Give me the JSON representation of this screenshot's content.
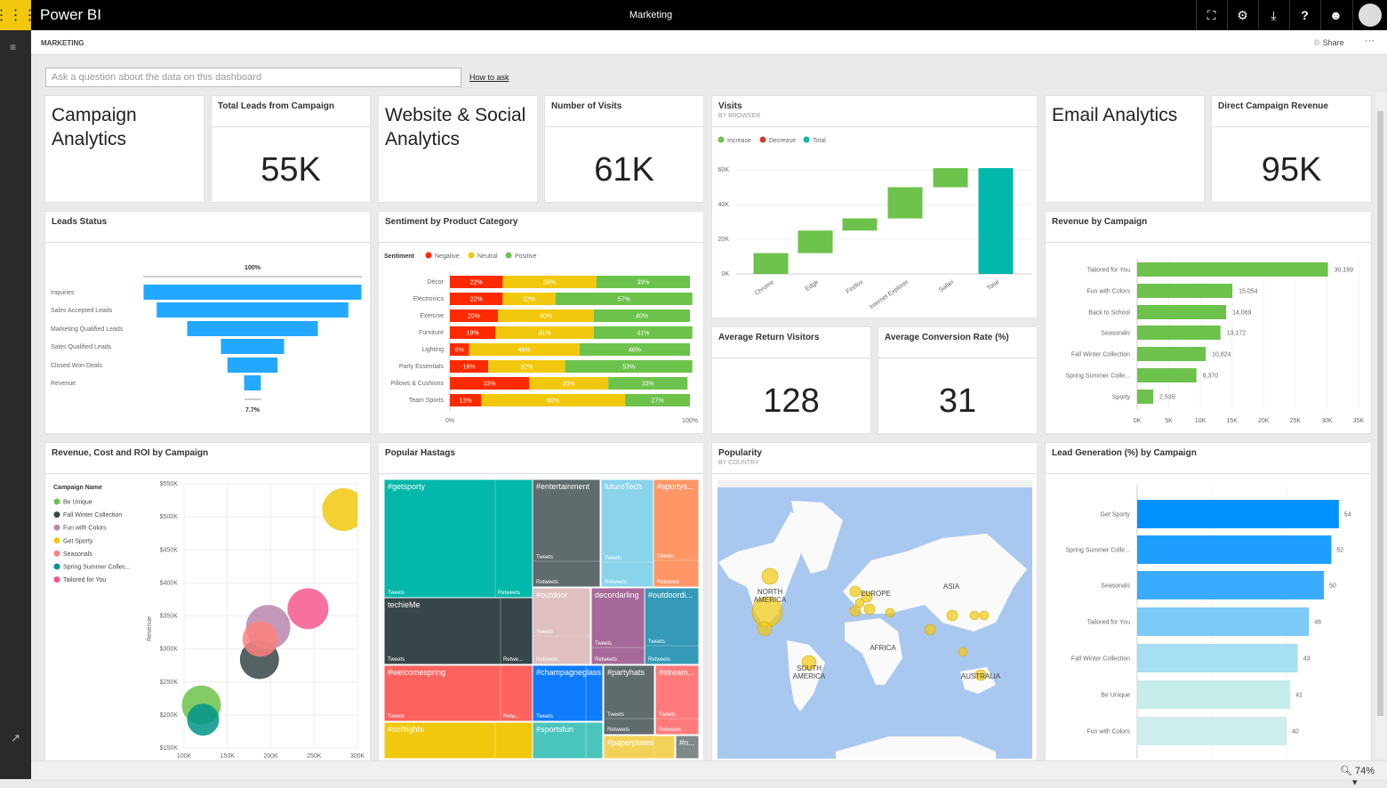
{
  "app": {
    "brand": "Power BI",
    "title": "Marketing",
    "section": "MARKETING",
    "share": "Share",
    "more": "···",
    "zoom": "74%"
  },
  "header_icons": [
    "fullscreen-icon",
    "gear-icon",
    "download-icon",
    "help-icon",
    "smiley-icon",
    "avatar-icon"
  ],
  "qa": {
    "placeholder": "Ask a question about the data on this dashboard",
    "how_to": "How to ask"
  },
  "tiles": {
    "campaign_analytics": "Campaign Analytics",
    "total_leads": {
      "title": "Total Leads from Campaign",
      "value": "55K"
    },
    "website_social": "Website & Social Analytics",
    "visits_number": {
      "title": "Number of Visits",
      "value": "61K"
    },
    "visits": {
      "title": "Visits",
      "subtitle": "BY BROWSER"
    },
    "email_analytics": "Email Analytics",
    "direct_revenue": {
      "title": "Direct Campaign Revenue",
      "value": "95K"
    },
    "leads_status": {
      "title": "Leads Status"
    },
    "sentiment": {
      "title": "Sentiment by Product Category"
    },
    "avg_return": {
      "title": "Average Return Visitors",
      "value": "128"
    },
    "avg_conversion": {
      "title": "Average Conversion Rate (%)",
      "value": "31"
    },
    "revenue_campaign": {
      "title": "Revenue by Campaign"
    },
    "rcr": {
      "title": "Revenue, Cost and ROI by Campaign"
    },
    "hashtags": {
      "title": "Popular Hastags"
    },
    "popularity": {
      "title": "Popularity",
      "subtitle": "BY COUNTRY"
    },
    "lead_gen": {
      "title": "Lead Generation (%) by Campaign"
    }
  },
  "chart_data": [
    {
      "id": "funnel",
      "type": "funnel",
      "categories": [
        "Inquiries",
        "Sales Accepted Leads",
        "Marketing Qualified Leads",
        "Sales Qualified Leads",
        "Closed Won Deals",
        "Revenue"
      ],
      "values": [
        100,
        88,
        60,
        29,
        23,
        7.7
      ],
      "top_label": "100%",
      "bottom_label": "7.7%",
      "color": "#23a8ff"
    },
    {
      "id": "sentiment",
      "type": "bar",
      "stacked": "100%",
      "legend_title": "Sentiment",
      "categories": [
        "Décor",
        "Electronics",
        "Exercise",
        "Furniture",
        "Lighting",
        "Party Essentials",
        "Pillows & Cushions",
        "Team Sports"
      ],
      "series": [
        {
          "name": "Negative",
          "color": "#fd2a00",
          "values": [
            22,
            22,
            20,
            19,
            8,
            16,
            33,
            13
          ]
        },
        {
          "name": "Neutral",
          "color": "#f2c80f",
          "values": [
            39,
            22,
            40,
            41,
            46,
            32,
            33,
            60
          ]
        },
        {
          "name": "Positive",
          "color": "#6cc24a",
          "values": [
            39,
            57,
            40,
            41,
            46,
            53,
            33,
            27
          ]
        }
      ],
      "xticks": [
        "0%",
        "100%"
      ]
    },
    {
      "id": "visits",
      "type": "waterfall",
      "legend": [
        {
          "name": "Increase",
          "color": "#6cc24a"
        },
        {
          "name": "Decrease",
          "color": "#d13b2f"
        },
        {
          "name": "Total",
          "color": "#01b8aa"
        }
      ],
      "categories": [
        "Chrome",
        "Edge",
        "Firefox",
        "Internet Explorer",
        "Safari",
        "Total"
      ],
      "values": [
        12000,
        13000,
        7000,
        18000,
        11000,
        61000
      ],
      "ylim": [
        0,
        60000
      ],
      "yticks": [
        "0K",
        "20K",
        "40K",
        "60K"
      ]
    },
    {
      "id": "revenue_by_campaign",
      "type": "bar",
      "orientation": "horizontal",
      "categories": [
        "Tailored for You",
        "Fun with Colors",
        "Back to School",
        "Seasonals",
        "Fall Winter Collection",
        "Spring Summer Colle...",
        "Sporty"
      ],
      "values": [
        30169,
        15054,
        14069,
        13172,
        10824,
        9370,
        2535
      ],
      "labels": [
        "30,169",
        "15,054",
        "14,069",
        "13,172",
        "10,824",
        "9,370",
        "2,535"
      ],
      "xlim": [
        0,
        35000
      ],
      "xticks": [
        "0K",
        "5K",
        "10K",
        "15K",
        "20K",
        "25K",
        "30K",
        "35K"
      ],
      "color": "#6cc24a"
    },
    {
      "id": "rcr",
      "type": "scatter",
      "legend_title": "Campaign Name",
      "ylabel": "Revenue",
      "xlim": [
        100000,
        300000
      ],
      "ylim": [
        150000,
        550000
      ],
      "xticks": [
        "100K",
        "150K",
        "200K",
        "250K",
        "300K"
      ],
      "yticks": [
        "$150K",
        "$200K",
        "$250K",
        "$300K",
        "$350K",
        "$400K",
        "$450K",
        "$500K",
        "$550K"
      ],
      "series": [
        {
          "name": "Be Unique",
          "color": "#6cc24a",
          "x": 120000,
          "y": 215000,
          "size": 22
        },
        {
          "name": "Fall Winter Collection",
          "color": "#374649",
          "x": 187000,
          "y": 284000,
          "size": 22
        },
        {
          "name": "Fun with Colors",
          "color": "#b887ad",
          "x": 197000,
          "y": 333000,
          "size": 25
        },
        {
          "name": "Get Sporty",
          "color": "#f2c80f",
          "x": 284000,
          "y": 511000,
          "size": 24
        },
        {
          "name": "Seasonals",
          "color": "#fd817e",
          "x": 188000,
          "y": 315000,
          "size": 20
        },
        {
          "name": "Spring Summer Collec...",
          "color": "#01958a",
          "x": 122000,
          "y": 193000,
          "size": 18
        },
        {
          "name": "Tailored for You",
          "color": "#f5588d",
          "x": 243000,
          "y": 361000,
          "size": 23
        }
      ]
    },
    {
      "id": "hashtags",
      "type": "treemap",
      "items": [
        {
          "name": "#getsporty",
          "color": "#01b8aa"
        },
        {
          "name": "#entertainment",
          "color": "#5f6b6d"
        },
        {
          "name": "futureTech",
          "color": "#8ad4eb"
        },
        {
          "name": "#sportys...",
          "color": "#fe9666"
        },
        {
          "name": "techieMe",
          "color": "#374649"
        },
        {
          "name": "#outdoor",
          "color": "#dfbfbf"
        },
        {
          "name": "decordarling",
          "color": "#a66999"
        },
        {
          "name": "#outdoordi...",
          "color": "#3599b8"
        },
        {
          "name": "#welcomespring",
          "color": "#fd625e"
        },
        {
          "name": "#champagneglass",
          "color": "#0f7bff"
        },
        {
          "name": "#partyhats",
          "color": "#5f6b6d"
        },
        {
          "name": "#stream...",
          "color": "#ff7a7a"
        },
        {
          "name": "#softlights",
          "color": "#f2c80f"
        },
        {
          "name": "#sportsfun",
          "color": "#4ac5bb"
        },
        {
          "name": "#paperplates",
          "color": "#f4d25a"
        },
        {
          "name": "#n...",
          "color": "#7f898a"
        }
      ],
      "sub_labels": {
        "tweets": "Tweets",
        "retweets": "Retweets",
        "retweets_short": "Retwe...",
        "retweets_short2": "Retw..."
      }
    },
    {
      "id": "popularity",
      "type": "map",
      "labels": [
        "NORTH AMERICA",
        "SOUTH AMERICA",
        "EUROPE",
        "AFRICA",
        "ASIA",
        "AUSTRALIA"
      ],
      "bubble_color": "#f2c80f",
      "water_color": "#a9c8f0"
    },
    {
      "id": "lead_gen",
      "type": "bar",
      "orientation": "horizontal",
      "categories": [
        "Get Sporty",
        "Spring Summer Colle...",
        "Seasonals",
        "Tailored for You",
        "Fall Winter Collection",
        "Be Unique",
        "Fun with Colors"
      ],
      "values": [
        54,
        52,
        50,
        46,
        43,
        41,
        40
      ],
      "colors": [
        "#0091ff",
        "#1e9eff",
        "#3aabff",
        "#7ccaf7",
        "#a6def2",
        "#c6ece9",
        "#cdeeed"
      ]
    }
  ]
}
